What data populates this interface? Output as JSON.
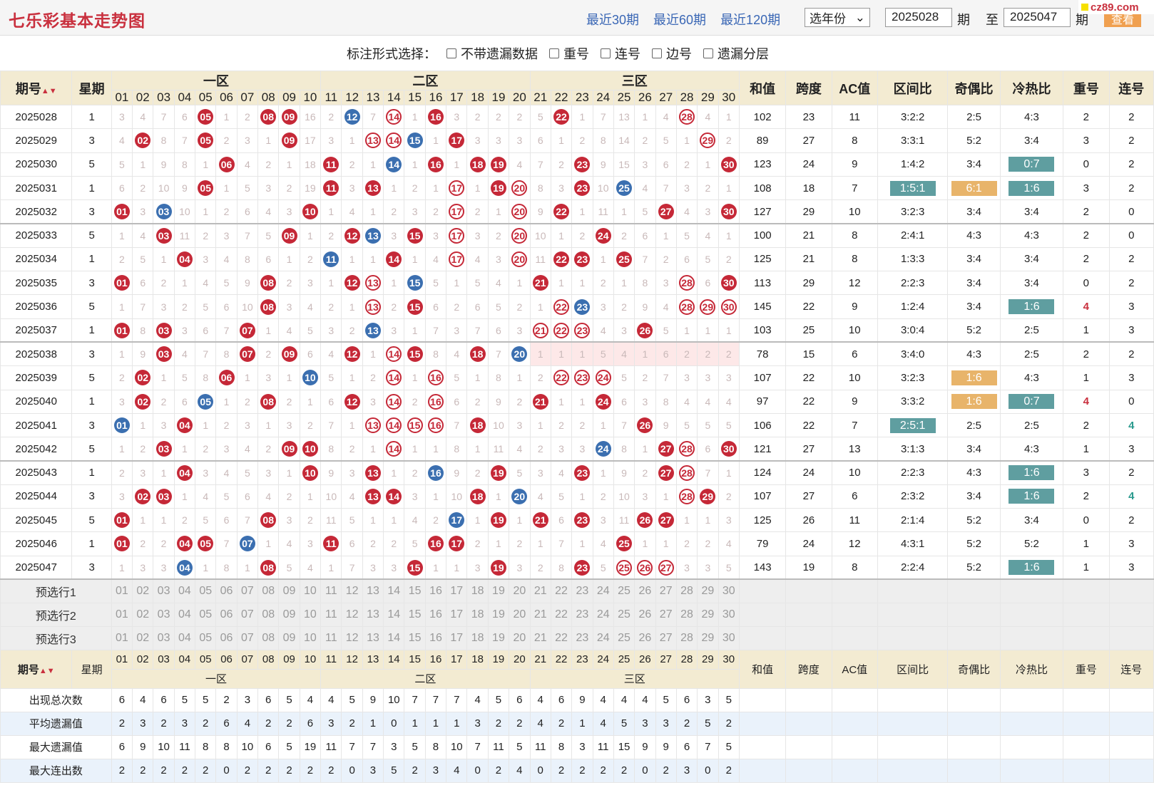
{
  "header": {
    "title": "七乐彩基本走势图",
    "links": [
      "最近30期",
      "最近60期",
      "最近120期"
    ],
    "year_select": "选年份",
    "from": "2025028",
    "from_suffix": "期",
    "to_label": "至",
    "to": "2025047",
    "to_suffix": "期",
    "query": "查看",
    "watermark": "cz89.com"
  },
  "options": {
    "label": "标注形式选择：",
    "items": [
      "不带遗漏数据",
      "重号",
      "连号",
      "边号",
      "遗漏分层"
    ]
  },
  "columns": {
    "period": "期号",
    "weekday": "星期",
    "zones": [
      "一区",
      "二区",
      "三区"
    ],
    "hezhi": "和值",
    "kuadu": "跨度",
    "ac": "AC值",
    "qujian": "区间比",
    "jiou": "奇偶比",
    "lengre": "冷热比",
    "chonghao": "重号",
    "lianhao": "连号"
  },
  "rows": [
    {
      "p": "2025028",
      "w": "1",
      "c": [
        3,
        4,
        7,
        6,
        "R05",
        1,
        2,
        "R08",
        "R09",
        16,
        2,
        "B12",
        7,
        "O14",
        1,
        "R16",
        3,
        2,
        2,
        2,
        5,
        "R22",
        1,
        7,
        13,
        1,
        4,
        "O28",
        4,
        1
      ],
      "h": "102",
      "k": "23",
      "ac": "11",
      "qj": "3:2:2",
      "jo": "2:5",
      "lr": "4:3",
      "ch": "2",
      "lh": "2"
    },
    {
      "p": "2025029",
      "w": "3",
      "c": [
        4,
        "R02",
        8,
        7,
        "R05",
        2,
        3,
        1,
        "R09",
        17,
        3,
        1,
        "O13",
        "O14",
        "B15",
        1,
        "R17",
        3,
        3,
        3,
        6,
        1,
        2,
        8,
        14,
        2,
        5,
        1,
        "O29",
        2
      ],
      "h": "89",
      "k": "27",
      "ac": "8",
      "qj": "3:3:1",
      "jo": "5:2",
      "lr": "3:4",
      "ch": "3",
      "lh": "2"
    },
    {
      "p": "2025030",
      "w": "5",
      "c": [
        5,
        1,
        9,
        8,
        1,
        "R06",
        4,
        2,
        1,
        18,
        "R11",
        2,
        1,
        "B14",
        1,
        "R16",
        1,
        "R18",
        "R19",
        4,
        7,
        2,
        "R23",
        9,
        15,
        3,
        6,
        2,
        1,
        "R30"
      ],
      "h": "123",
      "k": "24",
      "ac": "9",
      "qj": "1:4:2",
      "jo": "3:4",
      "lr": "H0:7",
      "ch": "0",
      "lh": "2"
    },
    {
      "p": "2025031",
      "w": "1",
      "c": [
        6,
        2,
        10,
        9,
        "R05",
        1,
        5,
        3,
        2,
        19,
        "R11",
        3,
        "R13",
        1,
        2,
        1,
        "O17",
        1,
        "R19",
        "O20",
        8,
        3,
        "R23",
        10,
        "B25",
        4,
        7,
        3,
        2,
        1
      ],
      "h": "108",
      "k": "18",
      "ac": "7",
      "qj": "H1:5:1",
      "jo": "O6:1",
      "lr": "H1:6",
      "ch": "3",
      "lh": "2"
    },
    {
      "p": "2025032",
      "w": "3",
      "c": [
        "R01",
        3,
        "B03",
        10,
        1,
        2,
        6,
        4,
        3,
        "R10",
        1,
        4,
        1,
        2,
        3,
        2,
        "O17",
        2,
        1,
        "O20",
        9,
        "R22",
        1,
        11,
        1,
        5,
        "R27",
        4,
        3,
        "R30"
      ],
      "h": "127",
      "k": "29",
      "ac": "10",
      "qj": "3:2:3",
      "jo": "3:4",
      "lr": "3:4",
      "ch": "2",
      "lh": "0"
    },
    {
      "p": "2025033",
      "w": "5",
      "c": [
        1,
        4,
        "R03",
        11,
        2,
        3,
        7,
        5,
        "R09",
        1,
        2,
        "R12",
        "B13",
        3,
        "R15",
        3,
        "O17",
        3,
        2,
        "O20",
        10,
        1,
        2,
        "R24",
        2,
        6,
        1,
        5,
        4,
        1
      ],
      "h": "100",
      "k": "21",
      "ac": "8",
      "qj": "2:4:1",
      "jo": "4:3",
      "lr": "4:3",
      "ch": "2",
      "lh": "0",
      "gs": true
    },
    {
      "p": "2025034",
      "w": "1",
      "c": [
        2,
        5,
        1,
        "R04",
        3,
        4,
        8,
        6,
        1,
        2,
        "B11",
        1,
        1,
        "R14",
        1,
        4,
        "O17",
        4,
        3,
        "O20",
        11,
        "R22",
        "R23",
        1,
        "R25",
        7,
        2,
        6,
        5,
        2
      ],
      "h": "125",
      "k": "21",
      "ac": "8",
      "qj": "1:3:3",
      "jo": "3:4",
      "lr": "3:4",
      "ch": "2",
      "lh": "2"
    },
    {
      "p": "2025035",
      "w": "3",
      "c": [
        "R01",
        6,
        2,
        1,
        4,
        5,
        9,
        "R08",
        2,
        3,
        1,
        "R12",
        "O13",
        1,
        "B15",
        5,
        1,
        5,
        4,
        1,
        "R21",
        1,
        1,
        2,
        1,
        8,
        3,
        "O28",
        6,
        "R30"
      ],
      "h": "113",
      "k": "29",
      "ac": "12",
      "qj": "2:2:3",
      "jo": "3:4",
      "lr": "3:4",
      "ch": "0",
      "lh": "2"
    },
    {
      "p": "2025036",
      "w": "5",
      "c": [
        1,
        7,
        3,
        2,
        5,
        6,
        10,
        "R08",
        3,
        4,
        2,
        1,
        "O13",
        2,
        "R15",
        6,
        2,
        6,
        5,
        2,
        1,
        "O22",
        "B23",
        3,
        2,
        9,
        4,
        "O28",
        "O29",
        "O30"
      ],
      "h": "145",
      "k": "22",
      "ac": "9",
      "qj": "1:2:4",
      "jo": "3:4",
      "lr": "H1:6",
      "ch": "X4",
      "lh": "3"
    },
    {
      "p": "2025037",
      "w": "1",
      "c": [
        "R01",
        8,
        "R03",
        3,
        6,
        7,
        "R07",
        1,
        4,
        5,
        3,
        2,
        "B13",
        3,
        1,
        7,
        3,
        7,
        6,
        3,
        "O21",
        "O22",
        "O23",
        4,
        3,
        "R26",
        5,
        1,
        1,
        1
      ],
      "h": "103",
      "k": "25",
      "ac": "10",
      "qj": "3:0:4",
      "jo": "5:2",
      "lr": "2:5",
      "ch": "1",
      "lh": "3"
    },
    {
      "p": "2025038",
      "w": "3",
      "c": [
        1,
        9,
        "R03",
        4,
        7,
        8,
        "R07",
        2,
        "R09",
        6,
        4,
        "R12",
        1,
        "O14",
        "R15",
        8,
        4,
        "R18",
        7,
        "B20",
        1,
        1,
        1,
        5,
        4,
        1,
        6,
        2,
        2,
        2
      ],
      "h": "78",
      "k": "15",
      "ac": "6",
      "qj": "3:4:0",
      "jo": "4:3",
      "lr": "2:5",
      "ch": "2",
      "lh": "2",
      "gs": true,
      "pink": true
    },
    {
      "p": "2025039",
      "w": "5",
      "c": [
        2,
        "R02",
        1,
        5,
        8,
        "R06",
        1,
        3,
        1,
        "B10",
        5,
        1,
        2,
        "O14",
        1,
        "O16",
        5,
        1,
        8,
        1,
        2,
        "O22",
        "O23",
        "O24",
        5,
        2,
        7,
        3,
        3,
        3
      ],
      "h": "107",
      "k": "22",
      "ac": "10",
      "qj": "3:2:3",
      "jo": "O1:6",
      "lr": "4:3",
      "ch": "1",
      "lh": "3"
    },
    {
      "p": "2025040",
      "w": "1",
      "c": [
        3,
        "R02",
        2,
        6,
        "B05",
        1,
        2,
        "R08",
        2,
        1,
        6,
        "R12",
        3,
        "O14",
        2,
        "O16",
        6,
        2,
        9,
        2,
        "R21",
        1,
        1,
        "R24",
        6,
        3,
        8,
        4,
        4,
        4
      ],
      "h": "97",
      "k": "22",
      "ac": "9",
      "qj": "3:3:2",
      "jo": "O1:6",
      "lr": "H0:7",
      "ch": "X4",
      "lh": "0"
    },
    {
      "p": "2025041",
      "w": "3",
      "c": [
        "B01",
        1,
        3,
        "R04",
        1,
        2,
        3,
        1,
        3,
        2,
        7,
        1,
        "O13",
        "O14",
        "O15",
        "O16",
        7,
        "R18",
        10,
        3,
        1,
        2,
        2,
        1,
        7,
        "R26",
        9,
        5,
        5,
        5
      ],
      "h": "106",
      "k": "22",
      "ac": "7",
      "qj": "H2:5:1",
      "jo": "2:5",
      "lr": "2:5",
      "ch": "2",
      "lh": "T4"
    },
    {
      "p": "2025042",
      "w": "5",
      "c": [
        1,
        2,
        "R03",
        1,
        2,
        3,
        4,
        2,
        "R09",
        "R10",
        8,
        2,
        1,
        "O14",
        1,
        1,
        8,
        1,
        11,
        4,
        2,
        3,
        3,
        "B24",
        8,
        1,
        "R27",
        "O28",
        6,
        "R30"
      ],
      "h": "121",
      "k": "27",
      "ac": "13",
      "qj": "3:1:3",
      "jo": "3:4",
      "lr": "4:3",
      "ch": "1",
      "lh": "3"
    },
    {
      "p": "2025043",
      "w": "1",
      "c": [
        2,
        3,
        1,
        "R04",
        3,
        4,
        5,
        3,
        1,
        "R10",
        9,
        3,
        "R13",
        1,
        2,
        "B16",
        9,
        2,
        "R19",
        5,
        3,
        4,
        "R23",
        1,
        9,
        2,
        "R27",
        "O28",
        7,
        1
      ],
      "h": "124",
      "k": "24",
      "ac": "10",
      "qj": "2:2:3",
      "jo": "4:3",
      "lr": "H1:6",
      "ch": "3",
      "lh": "2",
      "gs": true
    },
    {
      "p": "2025044",
      "w": "3",
      "c": [
        3,
        "R02",
        "R03",
        1,
        4,
        5,
        6,
        4,
        2,
        1,
        10,
        4,
        "R13",
        "R14",
        3,
        1,
        10,
        "R18",
        1,
        "B20",
        4,
        5,
        1,
        2,
        10,
        3,
        1,
        "O28",
        "R29",
        2
      ],
      "h": "107",
      "k": "27",
      "ac": "6",
      "qj": "2:3:2",
      "jo": "3:4",
      "lr": "H1:6",
      "ch": "2",
      "lh": "T4"
    },
    {
      "p": "2025045",
      "w": "5",
      "c": [
        "R01",
        1,
        1,
        2,
        5,
        6,
        7,
        "R08",
        3,
        2,
        11,
        5,
        1,
        1,
        4,
        2,
        "B17",
        1,
        "R19",
        1,
        "R21",
        6,
        "R23",
        3,
        11,
        "R26",
        "R27",
        1,
        1,
        3
      ],
      "h": "125",
      "k": "26",
      "ac": "11",
      "qj": "2:1:4",
      "jo": "5:2",
      "lr": "3:4",
      "ch": "0",
      "lh": "2"
    },
    {
      "p": "2025046",
      "w": "1",
      "c": [
        "R01",
        2,
        2,
        "R04",
        "R05",
        7,
        "B07",
        1,
        4,
        3,
        "R11",
        6,
        2,
        2,
        5,
        "R16",
        "R17",
        2,
        1,
        2,
        1,
        7,
        1,
        4,
        "R25",
        1,
        1,
        2,
        2,
        4
      ],
      "h": "79",
      "k": "24",
      "ac": "12",
      "qj": "4:3:1",
      "jo": "5:2",
      "lr": "5:2",
      "ch": "1",
      "lh": "3"
    },
    {
      "p": "2025047",
      "w": "3",
      "c": [
        1,
        3,
        3,
        "B04",
        1,
        8,
        1,
        "R08",
        5,
        4,
        1,
        7,
        3,
        3,
        "R15",
        1,
        1,
        3,
        "R19",
        3,
        2,
        8,
        "R23",
        5,
        "O25",
        "O26",
        "O27",
        3,
        3,
        5
      ],
      "h": "143",
      "k": "19",
      "ac": "8",
      "qj": "2:2:4",
      "jo": "5:2",
      "lr": "H1:6",
      "ch": "1",
      "lh": "3"
    }
  ],
  "preselect": [
    "预选行1",
    "预选行2",
    "预选行3"
  ],
  "numbers": [
    "01",
    "02",
    "03",
    "04",
    "05",
    "06",
    "07",
    "08",
    "09",
    "10",
    "11",
    "12",
    "13",
    "14",
    "15",
    "16",
    "17",
    "18",
    "19",
    "20",
    "21",
    "22",
    "23",
    "24",
    "25",
    "26",
    "27",
    "28",
    "29",
    "30"
  ],
  "stats": [
    {
      "label": "出现总次数",
      "v": [
        6,
        4,
        6,
        5,
        5,
        2,
        3,
        6,
        5,
        4,
        4,
        5,
        9,
        10,
        7,
        7,
        7,
        4,
        5,
        6,
        4,
        6,
        9,
        4,
        4,
        4,
        5,
        6,
        3,
        5
      ]
    },
    {
      "label": "平均遗漏值",
      "v": [
        2,
        3,
        2,
        3,
        2,
        6,
        4,
        2,
        2,
        6,
        3,
        2,
        1,
        0,
        1,
        1,
        1,
        3,
        2,
        2,
        4,
        2,
        1,
        4,
        5,
        3,
        3,
        2,
        5,
        2
      ]
    },
    {
      "label": "最大遗漏值",
      "v": [
        6,
        9,
        10,
        11,
        8,
        8,
        10,
        6,
        5,
        19,
        11,
        7,
        7,
        3,
        5,
        8,
        10,
        7,
        11,
        5,
        11,
        8,
        3,
        11,
        15,
        9,
        9,
        6,
        7,
        5
      ]
    },
    {
      "label": "最大连出数",
      "v": [
        2,
        2,
        2,
        2,
        2,
        0,
        2,
        2,
        2,
        2,
        2,
        0,
        3,
        5,
        2,
        3,
        4,
        0,
        2,
        4,
        0,
        2,
        2,
        2,
        2,
        0,
        2,
        3,
        0,
        2
      ]
    }
  ]
}
